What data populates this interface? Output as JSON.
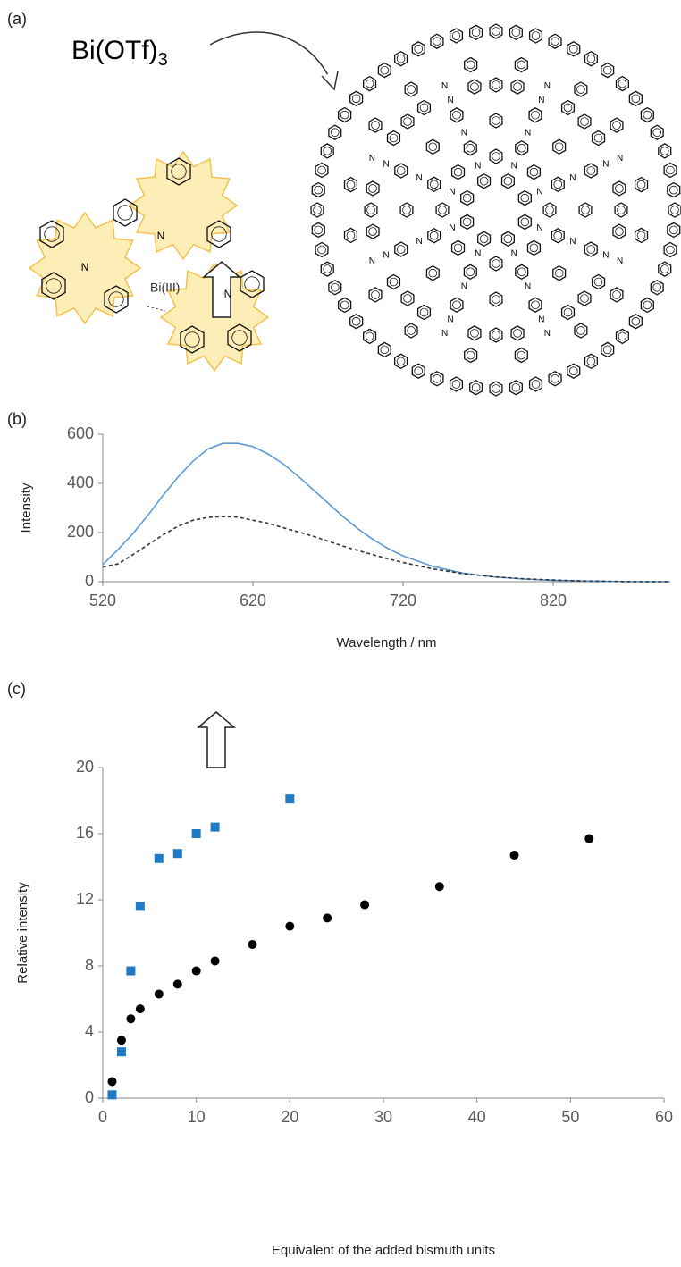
{
  "diagram": {
    "label": "(a)",
    "reagent": {
      "text": "Bi(OTf)",
      "subscript": "3"
    },
    "metal": "Bi(III)",
    "atom": "N"
  },
  "chart_data": [
    {
      "type": "line",
      "panel_label": "(b)",
      "x_label": "Wavelength / nm",
      "y_label": "Intensity",
      "x": [
        520,
        530,
        540,
        550,
        560,
        570,
        580,
        590,
        600,
        610,
        620,
        630,
        640,
        650,
        660,
        670,
        680,
        690,
        700,
        710,
        720,
        740,
        760,
        780,
        800,
        820,
        840,
        860,
        880,
        898
      ],
      "series": [
        {
          "color": "#5b9bd5",
          "dash": false,
          "values": [
            70,
            130,
            195,
            270,
            350,
            425,
            490,
            540,
            563,
            563,
            550,
            520,
            480,
            430,
            375,
            320,
            265,
            215,
            172,
            135,
            105,
            62,
            35,
            20,
            11,
            6,
            3,
            1,
            0,
            0
          ]
        },
        {
          "color": "#333333",
          "dash": true,
          "values": [
            60,
            72,
            110,
            150,
            190,
            225,
            250,
            262,
            265,
            263,
            250,
            238,
            220,
            203,
            185,
            165,
            145,
            127,
            110,
            93,
            78,
            52,
            33,
            20,
            12,
            7,
            3,
            1,
            0,
            0
          ]
        }
      ],
      "xlim": [
        520,
        898
      ],
      "xticks": [
        520,
        620,
        720,
        820
      ],
      "ylim": [
        0,
        600
      ],
      "yticks": [
        0,
        200,
        400,
        600
      ]
    },
    {
      "type": "scatter",
      "panel_label": "(c)",
      "x_label": "Equivalent of the added bismuth units",
      "y_label": "Relative intensity",
      "series": [
        {
          "color": "#1f7bc8",
          "marker": "square",
          "x": [
            1,
            2,
            3,
            4,
            6,
            8,
            10,
            12,
            20
          ],
          "values": [
            0.2,
            2.8,
            7.7,
            11.6,
            14.5,
            14.8,
            16.0,
            16.4,
            18.1
          ]
        },
        {
          "color": "#000000",
          "marker": "circle",
          "x": [
            1,
            2,
            3,
            4,
            6,
            8,
            10,
            12,
            16,
            20,
            24,
            28,
            36,
            44,
            52
          ],
          "values": [
            1.0,
            3.5,
            4.8,
            5.4,
            6.3,
            6.9,
            7.7,
            8.3,
            9.3,
            10.4,
            10.9,
            11.7,
            12.8,
            14.7,
            15.7
          ]
        }
      ],
      "xlim": [
        0,
        60
      ],
      "xticks": [
        0,
        10,
        20,
        30,
        40,
        50,
        60
      ],
      "ylim": [
        0,
        20
      ],
      "yticks": [
        0,
        4,
        8,
        12,
        16,
        20
      ]
    }
  ]
}
